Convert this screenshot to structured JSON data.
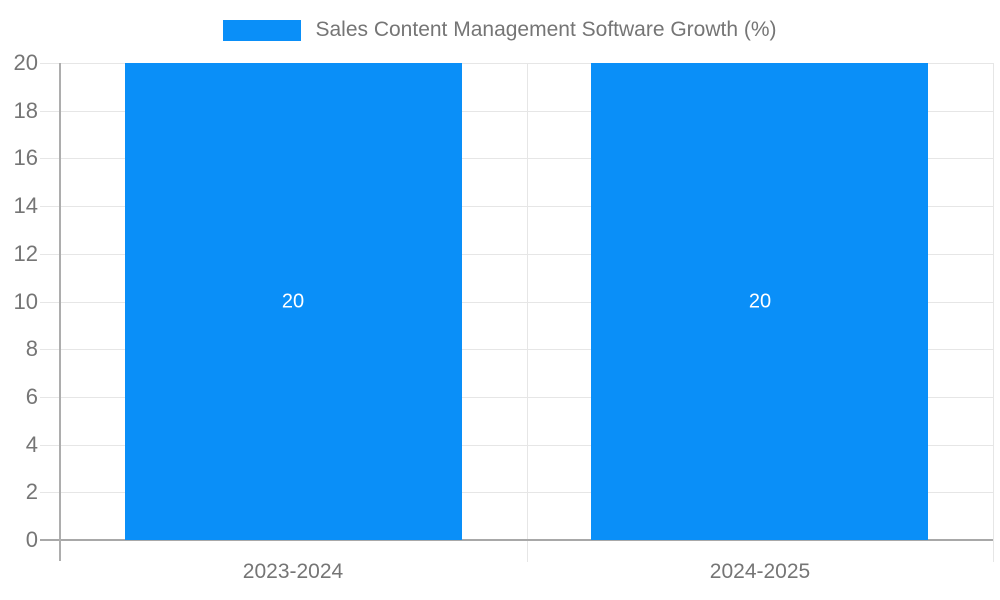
{
  "legend": {
    "label": "Sales Content Management Software Growth (%)",
    "swatch_color": "#0A8FF8"
  },
  "chart_data": {
    "type": "bar",
    "title": "",
    "xlabel": "",
    "ylabel": "",
    "categories": [
      "2023-2024",
      "2024-2025"
    ],
    "series": [
      {
        "name": "Sales Content Management Software Growth (%)",
        "values": [
          20,
          20
        ],
        "data_labels": [
          "20",
          "20"
        ],
        "color": "#0A8FF8"
      }
    ],
    "ylim": [
      0,
      20
    ],
    "ytick_step": 2,
    "ytick_labels": [
      "0",
      "2",
      "4",
      "6",
      "8",
      "10",
      "12",
      "14",
      "16",
      "18",
      "20"
    ],
    "grid": true,
    "legend_position": "top-center",
    "data_label_color": "#ffffff"
  },
  "colors": {
    "bar": "#0A8FF8",
    "grid": "#e6e6e6",
    "axis": "#a8a8a8",
    "text": "#757575",
    "bar_label": "#ffffff",
    "background": "#ffffff"
  }
}
